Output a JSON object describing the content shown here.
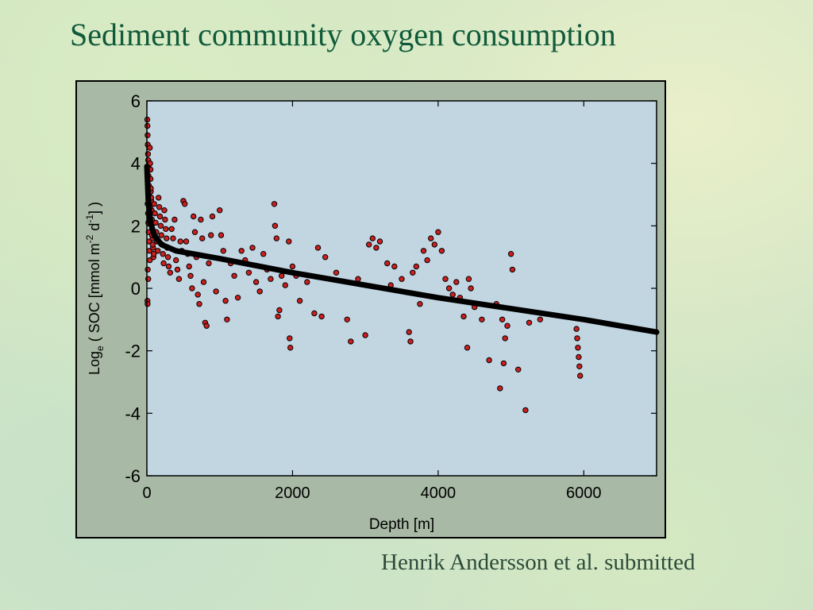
{
  "slide": {
    "title": "Sediment community oxygen consumption",
    "credit": "Henrik Andersson et al. submitted"
  },
  "colors": {
    "title": "#0f5a3a",
    "frame_bg": "#a8b9a5",
    "plot_bg": "#c2d6e2",
    "point_fill": "#cc1f1f",
    "point_stroke": "#000000",
    "fit_line": "#000000"
  },
  "chart_data": {
    "type": "scatter",
    "title": "",
    "xlabel": "Depth  [m]",
    "ylabel": "Loge ( SOC [mmol m-2 d-1] )",
    "xlim": [
      0,
      7000
    ],
    "ylim": [
      -6,
      6
    ],
    "xticks": [
      0,
      2000,
      4000,
      6000
    ],
    "yticks": [
      6,
      4,
      2,
      0,
      -2,
      -4,
      -6
    ],
    "grid": false,
    "series": [
      {
        "kind": "points",
        "points": [
          [
            5,
            5.4
          ],
          [
            8,
            5.2
          ],
          [
            10,
            4.9
          ],
          [
            12,
            4.6
          ],
          [
            15,
            4.3
          ],
          [
            18,
            4.1
          ],
          [
            20,
            3.9
          ],
          [
            22,
            3.6
          ],
          [
            25,
            3.3
          ],
          [
            30,
            3.0
          ],
          [
            10,
            2.7
          ],
          [
            15,
            2.4
          ],
          [
            20,
            2.1
          ],
          [
            25,
            1.8
          ],
          [
            30,
            1.5
          ],
          [
            35,
            1.2
          ],
          [
            40,
            0.9
          ],
          [
            12,
            0.6
          ],
          [
            18,
            0.3
          ],
          [
            8,
            -0.4
          ],
          [
            10,
            -0.5
          ],
          [
            40,
            4.5
          ],
          [
            45,
            4.0
          ],
          [
            50,
            3.5
          ],
          [
            55,
            3.1
          ],
          [
            60,
            2.8
          ],
          [
            65,
            2.5
          ],
          [
            70,
            2.2
          ],
          [
            75,
            1.9
          ],
          [
            80,
            1.6
          ],
          [
            85,
            1.3
          ],
          [
            90,
            1.0
          ],
          [
            50,
            3.8
          ],
          [
            55,
            3.2
          ],
          [
            60,
            2.9
          ],
          [
            45,
            2.6
          ],
          [
            65,
            2.0
          ],
          [
            70,
            1.7
          ],
          [
            80,
            1.4
          ],
          [
            95,
            1.1
          ],
          [
            100,
            2.7
          ],
          [
            110,
            2.4
          ],
          [
            120,
            2.1
          ],
          [
            130,
            1.8
          ],
          [
            140,
            1.5
          ],
          [
            150,
            1.2
          ],
          [
            160,
            2.9
          ],
          [
            170,
            2.6
          ],
          [
            180,
            2.3
          ],
          [
            190,
            2.0
          ],
          [
            200,
            1.7
          ],
          [
            210,
            1.4
          ],
          [
            220,
            1.1
          ],
          [
            230,
            0.8
          ],
          [
            240,
            2.5
          ],
          [
            250,
            2.2
          ],
          [
            260,
            1.9
          ],
          [
            270,
            1.6
          ],
          [
            280,
            1.3
          ],
          [
            290,
            1.0
          ],
          [
            300,
            0.7
          ],
          [
            320,
            0.5
          ],
          [
            340,
            1.9
          ],
          [
            360,
            1.6
          ],
          [
            380,
            2.2
          ],
          [
            400,
            0.9
          ],
          [
            420,
            0.6
          ],
          [
            440,
            0.3
          ],
          [
            460,
            1.5
          ],
          [
            480,
            1.2
          ],
          [
            500,
            2.8
          ],
          [
            520,
            2.7
          ],
          [
            540,
            1.5
          ],
          [
            560,
            1.1
          ],
          [
            580,
            0.7
          ],
          [
            600,
            0.4
          ],
          [
            620,
            0.0
          ],
          [
            640,
            2.3
          ],
          [
            660,
            1.8
          ],
          [
            680,
            1.0
          ],
          [
            700,
            -0.2
          ],
          [
            720,
            -0.5
          ],
          [
            740,
            2.2
          ],
          [
            760,
            1.6
          ],
          [
            780,
            0.2
          ],
          [
            800,
            -1.1
          ],
          [
            820,
            -1.2
          ],
          [
            850,
            0.8
          ],
          [
            880,
            1.7
          ],
          [
            900,
            2.3
          ],
          [
            950,
            -0.1
          ],
          [
            1000,
            2.5
          ],
          [
            1020,
            1.7
          ],
          [
            1050,
            1.2
          ],
          [
            1080,
            -0.4
          ],
          [
            1100,
            -1.0
          ],
          [
            1150,
            0.8
          ],
          [
            1200,
            0.4
          ],
          [
            1250,
            -0.3
          ],
          [
            1300,
            1.2
          ],
          [
            1350,
            0.9
          ],
          [
            1400,
            0.5
          ],
          [
            1450,
            1.3
          ],
          [
            1500,
            0.2
          ],
          [
            1550,
            -0.1
          ],
          [
            1600,
            1.1
          ],
          [
            1650,
            0.6
          ],
          [
            1700,
            0.3
          ],
          [
            1750,
            2.7
          ],
          [
            1760,
            2.0
          ],
          [
            1780,
            1.6
          ],
          [
            1800,
            -0.9
          ],
          [
            1820,
            -0.7
          ],
          [
            1850,
            0.4
          ],
          [
            1900,
            0.1
          ],
          [
            1950,
            1.5
          ],
          [
            1960,
            -1.6
          ],
          [
            1970,
            -1.9
          ],
          [
            2000,
            0.7
          ],
          [
            2050,
            0.4
          ],
          [
            2100,
            -0.4
          ],
          [
            2200,
            0.2
          ],
          [
            2300,
            -0.8
          ],
          [
            2350,
            1.3
          ],
          [
            2400,
            -0.9
          ],
          [
            2450,
            1.0
          ],
          [
            2600,
            0.5
          ],
          [
            2750,
            -1.0
          ],
          [
            2800,
            -1.7
          ],
          [
            2900,
            0.3
          ],
          [
            3000,
            -1.5
          ],
          [
            3050,
            1.4
          ],
          [
            3100,
            1.6
          ],
          [
            3150,
            1.3
          ],
          [
            3200,
            1.5
          ],
          [
            3300,
            0.8
          ],
          [
            3350,
            0.1
          ],
          [
            3400,
            0.7
          ],
          [
            3500,
            0.3
          ],
          [
            3600,
            -1.4
          ],
          [
            3620,
            -1.7
          ],
          [
            3650,
            0.5
          ],
          [
            3700,
            0.7
          ],
          [
            3750,
            -0.5
          ],
          [
            3800,
            1.2
          ],
          [
            3850,
            0.9
          ],
          [
            3900,
            1.6
          ],
          [
            3950,
            1.4
          ],
          [
            4000,
            1.8
          ],
          [
            4050,
            1.2
          ],
          [
            4100,
            0.3
          ],
          [
            4150,
            0.0
          ],
          [
            4200,
            -0.2
          ],
          [
            4250,
            0.2
          ],
          [
            4300,
            -0.3
          ],
          [
            4350,
            -0.9
          ],
          [
            4400,
            -1.9
          ],
          [
            4420,
            0.3
          ],
          [
            4450,
            0.0
          ],
          [
            4500,
            -0.6
          ],
          [
            4600,
            -1.0
          ],
          [
            4700,
            -2.3
          ],
          [
            4800,
            -0.5
          ],
          [
            4850,
            -3.2
          ],
          [
            4880,
            -1.0
          ],
          [
            4900,
            -2.4
          ],
          [
            4920,
            -1.6
          ],
          [
            4950,
            -1.2
          ],
          [
            5000,
            1.1
          ],
          [
            5020,
            0.6
          ],
          [
            5100,
            -2.6
          ],
          [
            5200,
            -3.9
          ],
          [
            5250,
            -1.1
          ],
          [
            5400,
            -1.0
          ],
          [
            5900,
            -1.3
          ],
          [
            5910,
            -1.6
          ],
          [
            5920,
            -1.9
          ],
          [
            5930,
            -2.2
          ],
          [
            5940,
            -2.5
          ],
          [
            5950,
            -2.8
          ]
        ]
      },
      {
        "kind": "fit",
        "points": [
          [
            0,
            3.9
          ],
          [
            20,
            2.8
          ],
          [
            50,
            2.1
          ],
          [
            100,
            1.7
          ],
          [
            200,
            1.4
          ],
          [
            400,
            1.2
          ],
          [
            1000,
            0.95
          ],
          [
            2000,
            0.5
          ],
          [
            4000,
            -0.3
          ],
          [
            6000,
            -1.0
          ],
          [
            7000,
            -1.4
          ]
        ]
      }
    ]
  }
}
